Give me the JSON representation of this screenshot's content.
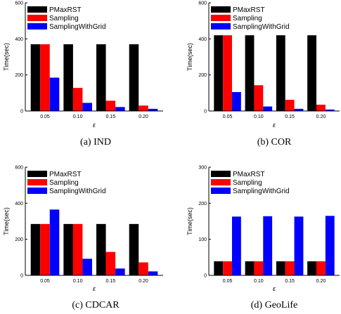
{
  "colors": {
    "PMaxRST": "#000000",
    "Sampling": "#ff0000",
    "SamplingWithGrid": "#0000ff"
  },
  "chart_data": [
    {
      "type": "bar",
      "caption": "(a)  IND",
      "categories": [
        "0.05",
        "0.10",
        "0.15",
        "0.20"
      ],
      "xlabel": "ε",
      "ylabel": "Time(sec)",
      "ylim": [
        0,
        600
      ],
      "yticks": [
        "0",
        "200",
        "400",
        "600"
      ],
      "legend": "top-left",
      "series": [
        {
          "name": "PMaxRST",
          "values": [
            370,
            370,
            370,
            370
          ]
        },
        {
          "name": "Sampling",
          "values": [
            370,
            128,
            57,
            30
          ]
        },
        {
          "name": "SamplingWithGrid",
          "values": [
            185,
            45,
            22,
            12
          ]
        }
      ]
    },
    {
      "type": "bar",
      "caption": "(b)  COR",
      "categories": [
        "0.05",
        "0.10",
        "0.15",
        "0.20"
      ],
      "xlabel": "ε",
      "ylabel": "Time(sec)",
      "ylim": [
        0,
        600
      ],
      "yticks": [
        "0",
        "200",
        "400",
        "600"
      ],
      "legend": "top-left",
      "series": [
        {
          "name": "PMaxRST",
          "values": [
            420,
            420,
            420,
            420
          ]
        },
        {
          "name": "Sampling",
          "values": [
            420,
            143,
            62,
            35
          ]
        },
        {
          "name": "SamplingWithGrid",
          "values": [
            105,
            25,
            12,
            8
          ]
        }
      ]
    },
    {
      "type": "bar",
      "caption": "(c)  CDCAR",
      "categories": [
        "0.05",
        "0.10",
        "0.15",
        "0.20"
      ],
      "xlabel": "ε",
      "ylabel": "Time(sec)",
      "ylim": [
        0,
        600
      ],
      "yticks": [
        "0",
        "200",
        "400",
        "600"
      ],
      "legend": "top-left",
      "series": [
        {
          "name": "PMaxRST",
          "values": [
            285,
            285,
            285,
            285
          ]
        },
        {
          "name": "Sampling",
          "values": [
            285,
            285,
            130,
            72
          ]
        },
        {
          "name": "SamplingWithGrid",
          "values": [
            365,
            92,
            38,
            22
          ]
        }
      ]
    },
    {
      "type": "bar",
      "caption": "(d)  GeoLife",
      "categories": [
        "0.05",
        "0.10",
        "0.15",
        "0.20"
      ],
      "xlabel": "ε",
      "ylabel": "Time(sec)",
      "ylim": [
        0,
        300
      ],
      "yticks": [
        "0",
        "100",
        "200",
        "300"
      ],
      "legend": "top-left",
      "series": [
        {
          "name": "PMaxRST",
          "values": [
            39,
            39,
            39,
            39
          ]
        },
        {
          "name": "Sampling",
          "values": [
            39,
            39,
            39,
            39
          ]
        },
        {
          "name": "SamplingWithGrid",
          "values": [
            163,
            164,
            163,
            165
          ]
        }
      ]
    }
  ]
}
